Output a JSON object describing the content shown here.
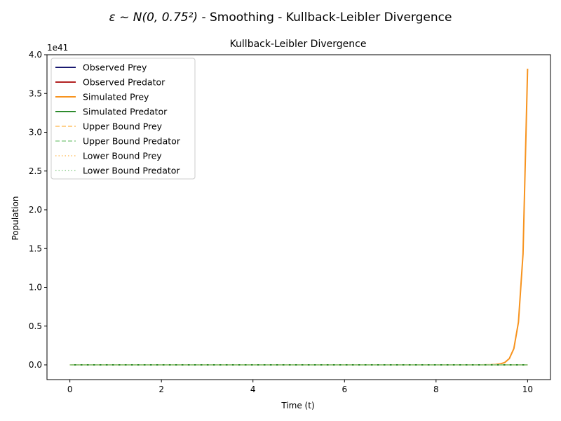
{
  "figure": {
    "suptitle_math": "ε ~ N(0, 0.75²)",
    "suptitle_rest": " - Smoothing - Kullback-Leibler Divergence"
  },
  "chart_data": {
    "type": "line",
    "title": "Kullback-Leibler Divergence",
    "xlabel": "Time (t)",
    "ylabel": "Population",
    "y_offset_label": "1e41",
    "y_scale": 1e+41,
    "xlim": [
      -0.5,
      10.5
    ],
    "ylim": [
      -0.19,
      4.0
    ],
    "xticks": [
      0,
      2,
      4,
      6,
      8,
      10
    ],
    "xtick_labels": [
      "0",
      "2",
      "4",
      "6",
      "8",
      "10"
    ],
    "yticks": [
      0.0,
      0.5,
      1.0,
      1.5,
      2.0,
      2.5,
      3.0,
      3.5,
      4.0
    ],
    "ytick_labels": [
      "0.0",
      "0.5",
      "1.0",
      "1.5",
      "2.0",
      "2.5",
      "3.0",
      "3.5",
      "4.0"
    ],
    "legend_position": "upper-left",
    "series": [
      {
        "name": "Observed Prey",
        "color": "#191970",
        "style": "solid",
        "x": [
          0,
          10
        ],
        "y": [
          0,
          0
        ]
      },
      {
        "name": "Observed Predator",
        "color": "#b22222",
        "style": "solid",
        "x": [
          0,
          10
        ],
        "y": [
          0,
          0
        ]
      },
      {
        "name": "Simulated Prey",
        "color": "#f7931e",
        "style": "solid",
        "x": [
          0,
          9.0,
          9.2,
          9.3,
          9.4,
          9.5,
          9.6,
          9.7,
          9.8,
          9.9,
          10.0
        ],
        "y": [
          0,
          0,
          0.002,
          0.005,
          0.012,
          0.03,
          0.08,
          0.21,
          0.55,
          1.43,
          3.82
        ]
      },
      {
        "name": "Simulated Predator",
        "color": "#2e8b2e",
        "style": "solid",
        "x": [
          0,
          10
        ],
        "y": [
          0,
          0
        ]
      },
      {
        "name": "Upper Bound Prey",
        "color": "#ffc266",
        "style": "dashed",
        "x": [
          0,
          10
        ],
        "y": [
          0,
          0
        ]
      },
      {
        "name": "Upper Bound Predator",
        "color": "#8fcf8f",
        "style": "dashed",
        "x": [
          0,
          10
        ],
        "y": [
          0,
          0
        ]
      },
      {
        "name": "Lower Bound Prey",
        "color": "#ffc266",
        "style": "dotted",
        "x": [
          0,
          10
        ],
        "y": [
          0,
          0
        ]
      },
      {
        "name": "Lower Bound Predator",
        "color": "#8fcf8f",
        "style": "dotted",
        "x": [
          0,
          10
        ],
        "y": [
          0,
          0
        ]
      }
    ]
  }
}
